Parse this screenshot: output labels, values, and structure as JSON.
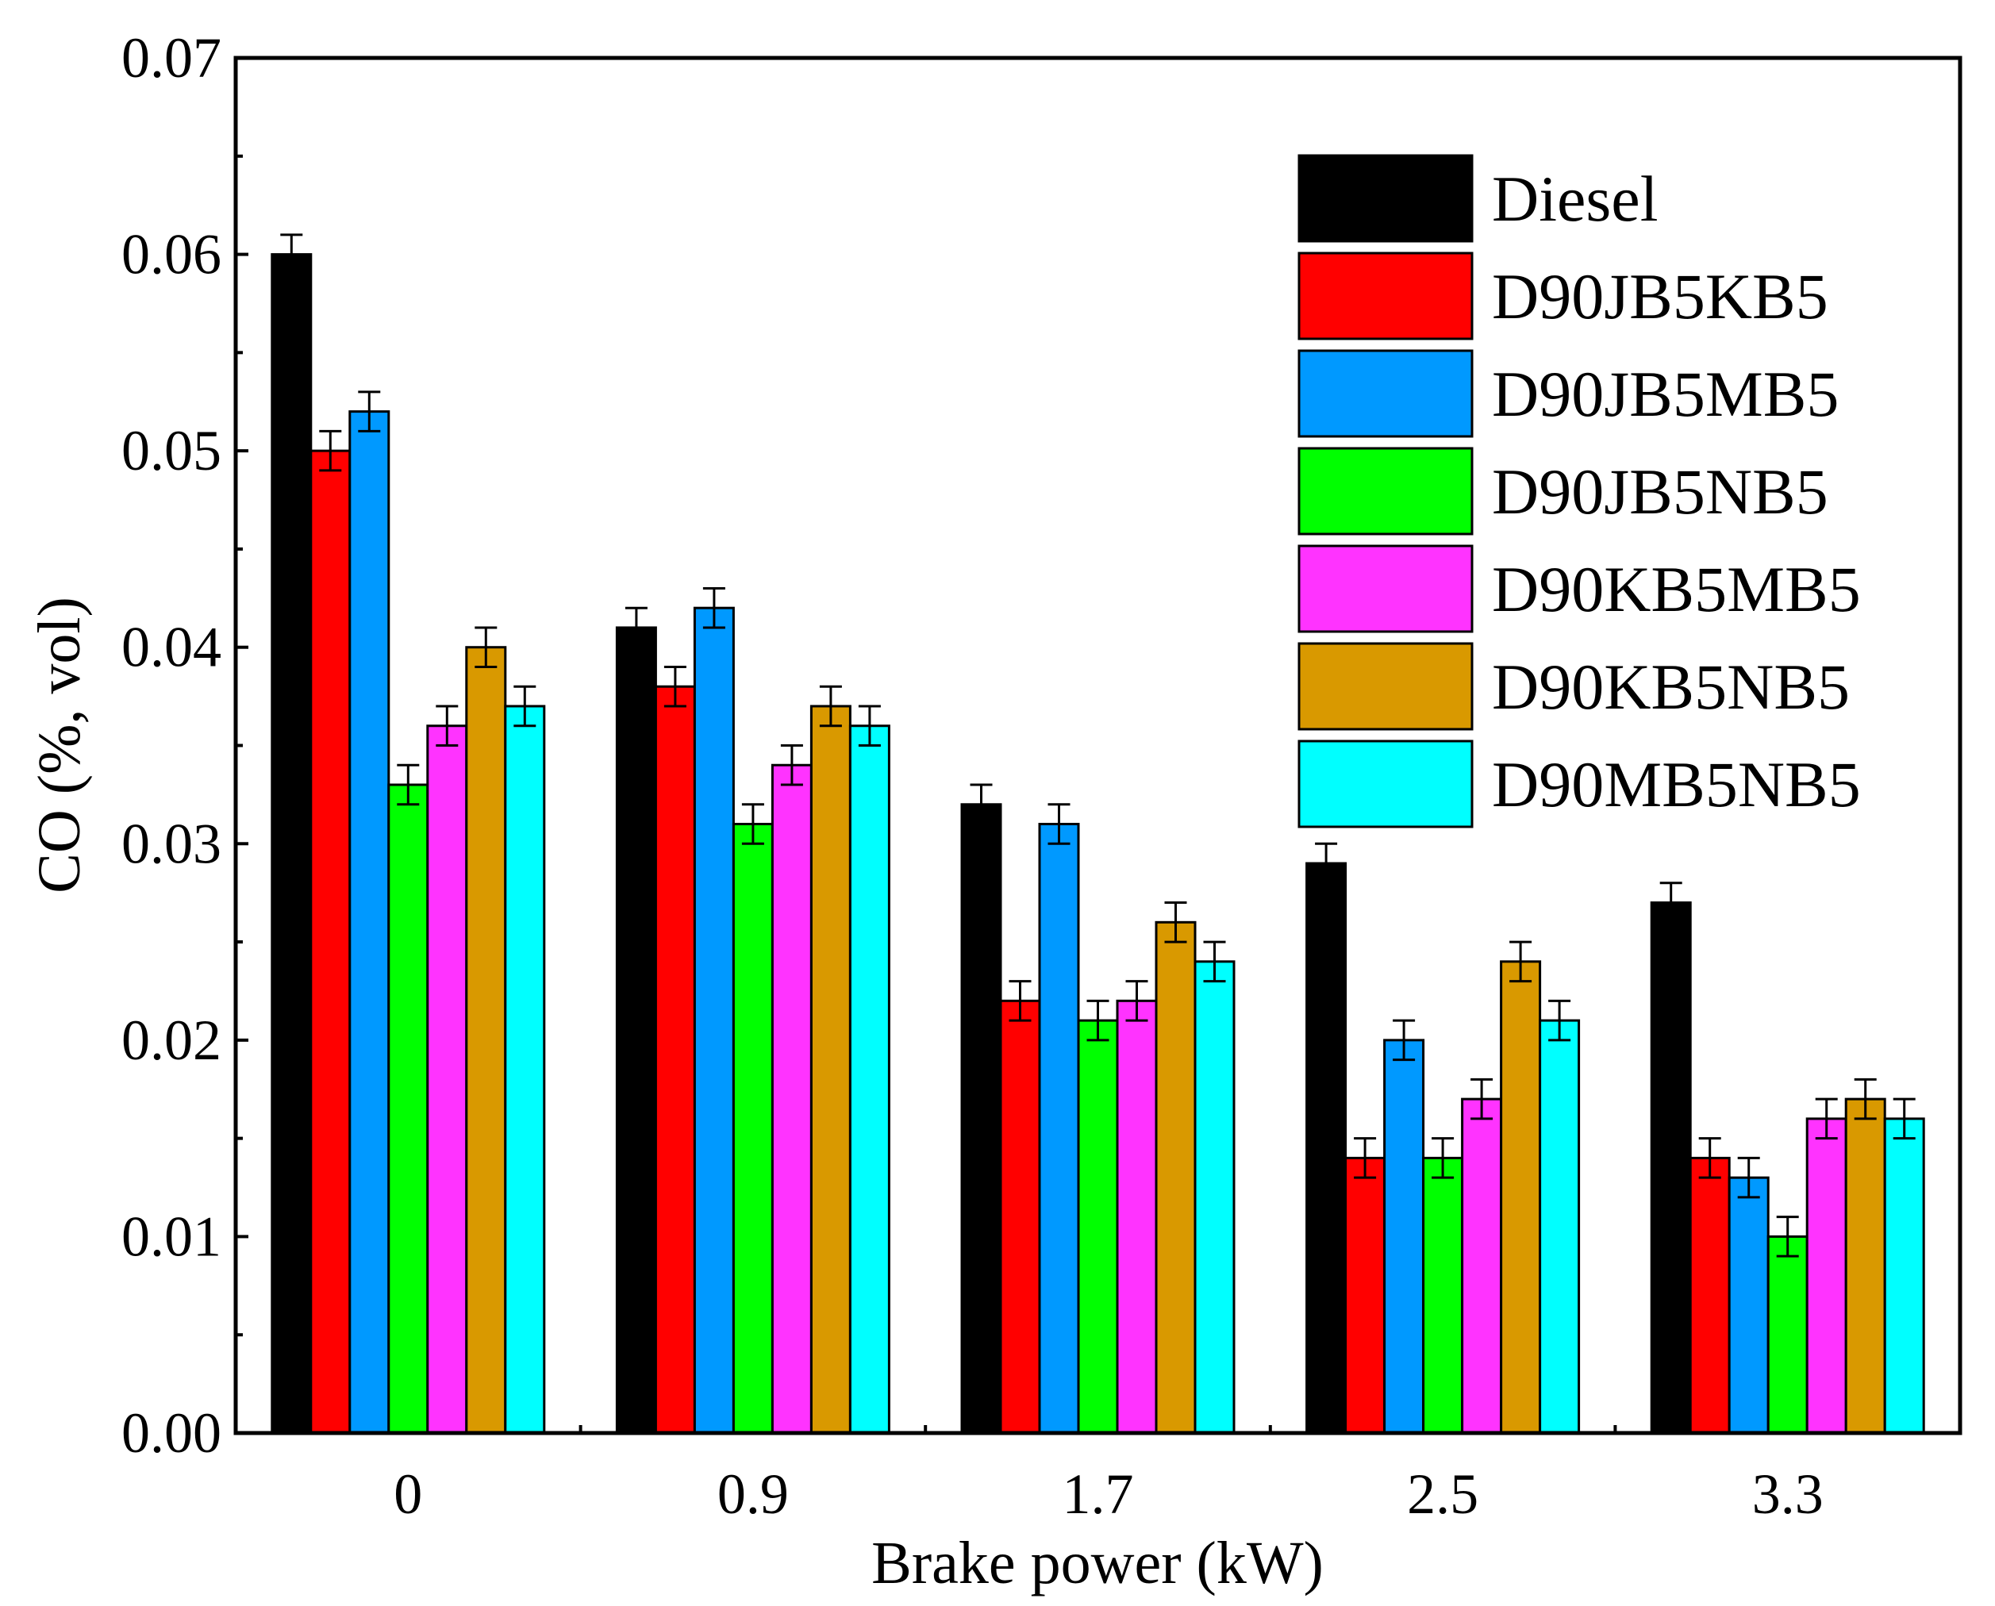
{
  "chart_data": {
    "type": "bar",
    "title": "",
    "xlabel": "Brake power (kW)",
    "ylabel": "CO (%, vol)",
    "ylim": [
      0,
      0.07
    ],
    "yticks": [
      "0.00",
      "0.01",
      "0.02",
      "0.03",
      "0.04",
      "0.05",
      "0.06",
      "0.07"
    ],
    "categories": [
      "0",
      "0.9",
      "1.7",
      "2.5",
      "3.3"
    ],
    "legend_position": "top-right",
    "series": [
      {
        "name": "Diesel",
        "color": "#000000",
        "values": [
          0.06,
          0.041,
          0.032,
          0.029,
          0.027
        ],
        "errors": [
          0.001,
          0.001,
          0.001,
          0.001,
          0.001
        ]
      },
      {
        "name": "D90JB5KB5",
        "color": "#ff0000",
        "values": [
          0.05,
          0.038,
          0.022,
          0.014,
          0.014
        ],
        "errors": [
          0.001,
          0.001,
          0.001,
          0.001,
          0.001
        ]
      },
      {
        "name": "D90JB5MB5",
        "color": "#0099ff",
        "values": [
          0.052,
          0.042,
          0.031,
          0.02,
          0.013
        ],
        "errors": [
          0.001,
          0.001,
          0.001,
          0.001,
          0.001
        ]
      },
      {
        "name": "D90JB5NB5",
        "color": "#00ff00",
        "values": [
          0.033,
          0.031,
          0.021,
          0.014,
          0.01
        ],
        "errors": [
          0.001,
          0.001,
          0.001,
          0.001,
          0.001
        ]
      },
      {
        "name": "D90KB5MB5",
        "color": "#ff33ff",
        "values": [
          0.036,
          0.034,
          0.022,
          0.017,
          0.016
        ],
        "errors": [
          0.001,
          0.001,
          0.001,
          0.001,
          0.001
        ]
      },
      {
        "name": "D90KB5NB5",
        "color": "#d99900",
        "values": [
          0.04,
          0.037,
          0.026,
          0.024,
          0.017
        ],
        "errors": [
          0.001,
          0.001,
          0.001,
          0.001,
          0.001
        ]
      },
      {
        "name": "D90MB5NB5",
        "color": "#00ffff",
        "values": [
          0.037,
          0.036,
          0.024,
          0.021,
          0.016
        ],
        "errors": [
          0.001,
          0.001,
          0.001,
          0.001,
          0.001
        ]
      }
    ]
  }
}
